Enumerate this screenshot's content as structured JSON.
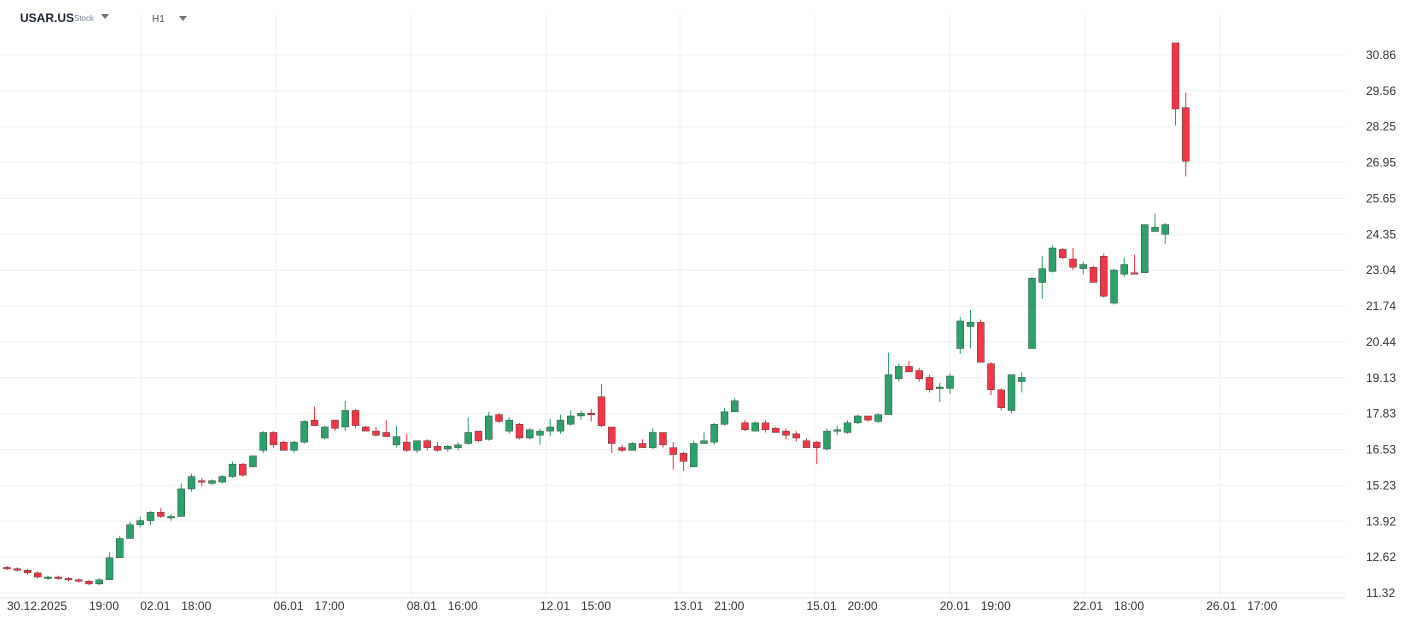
{
  "header": {
    "symbol": "USAR.US",
    "instrument_type": "Stock",
    "timeframe": "H1"
  },
  "colors": {
    "up": "#2ca26b",
    "down": "#f23645",
    "grid": "#eef0f3",
    "axis_text": "#333333"
  },
  "chart_data": {
    "type": "candlestick",
    "ylim": [
      11.32,
      31.5
    ],
    "y_ticks": [
      "30.86",
      "29.56",
      "28.25",
      "26.95",
      "25.65",
      "24.35",
      "23.04",
      "21.74",
      "20.44",
      "19.13",
      "17.83",
      "16.53",
      "15.23",
      "13.92",
      "12.62",
      "11.32"
    ],
    "x_ticks": [
      {
        "label": "30.12.2025",
        "bar": 0
      },
      {
        "label": "19:00",
        "bar": 8
      },
      {
        "label": "02.01",
        "bar": 13
      },
      {
        "label": "18:00",
        "bar": 17
      },
      {
        "label": "06.01",
        "bar": 26
      },
      {
        "label": "17:00",
        "bar": 30
      },
      {
        "label": "08.01",
        "bar": 39
      },
      {
        "label": "16:00",
        "bar": 43
      },
      {
        "label": "12.01",
        "bar": 52
      },
      {
        "label": "15:00",
        "bar": 56
      },
      {
        "label": "13.01",
        "bar": 65
      },
      {
        "label": "21:00",
        "bar": 69
      },
      {
        "label": "15.01",
        "bar": 78
      },
      {
        "label": "20:00",
        "bar": 82
      },
      {
        "label": "20.01",
        "bar": 91
      },
      {
        "label": "19:00",
        "bar": 95
      },
      {
        "label": "22.01",
        "bar": 104
      },
      {
        "label": "18:00",
        "bar": 108
      },
      {
        "label": "26.01",
        "bar": 117
      },
      {
        "label": "17:00",
        "bar": 121
      }
    ],
    "candles": [
      [
        12.25,
        12.3,
        12.15,
        12.2
      ],
      [
        12.2,
        12.25,
        12.1,
        12.15
      ],
      [
        12.15,
        12.2,
        12.0,
        12.05
      ],
      [
        12.05,
        12.1,
        11.85,
        11.9
      ],
      [
        11.85,
        11.95,
        11.8,
        11.9
      ],
      [
        11.9,
        11.95,
        11.8,
        11.85
      ],
      [
        11.85,
        11.9,
        11.75,
        11.8
      ],
      [
        11.8,
        11.85,
        11.7,
        11.75
      ],
      [
        11.75,
        11.8,
        11.6,
        11.65
      ],
      [
        11.65,
        11.85,
        11.6,
        11.8
      ],
      [
        11.8,
        12.8,
        11.8,
        12.6
      ],
      [
        12.6,
        13.4,
        12.6,
        13.3
      ],
      [
        13.3,
        13.9,
        13.3,
        13.8
      ],
      [
        13.8,
        14.1,
        13.7,
        13.95
      ],
      [
        13.95,
        14.3,
        13.8,
        14.25
      ],
      [
        14.25,
        14.4,
        14.05,
        14.1
      ],
      [
        14.05,
        14.2,
        13.95,
        14.1
      ],
      [
        14.1,
        15.3,
        14.1,
        15.1
      ],
      [
        15.1,
        15.65,
        15.0,
        15.55
      ],
      [
        15.4,
        15.5,
        15.2,
        15.35
      ],
      [
        15.3,
        15.45,
        15.25,
        15.4
      ],
      [
        15.35,
        15.6,
        15.3,
        15.55
      ],
      [
        15.55,
        16.1,
        15.5,
        16.0
      ],
      [
        16.0,
        16.05,
        15.55,
        15.6
      ],
      [
        15.9,
        16.3,
        15.9,
        16.3
      ],
      [
        16.5,
        17.2,
        16.4,
        17.15
      ],
      [
        17.15,
        17.2,
        16.6,
        16.7
      ],
      [
        16.8,
        16.85,
        16.5,
        16.5
      ],
      [
        16.5,
        16.85,
        16.4,
        16.8
      ],
      [
        16.8,
        17.6,
        16.75,
        17.55
      ],
      [
        17.6,
        18.1,
        17.4,
        17.4
      ],
      [
        16.95,
        17.4,
        16.9,
        17.35
      ],
      [
        17.6,
        17.6,
        17.2,
        17.3
      ],
      [
        17.35,
        18.3,
        17.2,
        17.95
      ],
      [
        17.95,
        18.0,
        17.3,
        17.4
      ],
      [
        17.35,
        17.4,
        17.25,
        17.2
      ],
      [
        17.2,
        17.35,
        17.0,
        17.05
      ],
      [
        17.15,
        17.6,
        17.05,
        17.0
      ],
      [
        16.7,
        17.4,
        16.6,
        17.0
      ],
      [
        16.8,
        17.1,
        16.45,
        16.5
      ],
      [
        16.5,
        16.85,
        16.4,
        16.85
      ],
      [
        16.85,
        16.9,
        16.5,
        16.6
      ],
      [
        16.65,
        16.8,
        16.45,
        16.5
      ],
      [
        16.55,
        16.7,
        16.45,
        16.65
      ],
      [
        16.6,
        16.8,
        16.5,
        16.7
      ],
      [
        16.75,
        17.7,
        16.7,
        17.15
      ],
      [
        17.2,
        17.2,
        16.8,
        16.85
      ],
      [
        16.9,
        17.9,
        16.85,
        17.75
      ],
      [
        17.8,
        17.85,
        17.5,
        17.55
      ],
      [
        17.2,
        17.7,
        17.1,
        17.6
      ],
      [
        17.45,
        17.5,
        16.9,
        16.95
      ],
      [
        16.95,
        17.3,
        16.9,
        17.25
      ],
      [
        17.05,
        17.3,
        16.7,
        17.2
      ],
      [
        17.2,
        17.65,
        17.0,
        17.35
      ],
      [
        17.2,
        17.8,
        17.1,
        17.6
      ],
      [
        17.45,
        17.95,
        17.4,
        17.75
      ],
      [
        17.75,
        17.95,
        17.6,
        17.85
      ],
      [
        17.85,
        18.0,
        17.55,
        17.8
      ],
      [
        18.45,
        18.9,
        17.35,
        17.4
      ],
      [
        17.35,
        17.35,
        16.4,
        16.75
      ],
      [
        16.6,
        16.7,
        16.45,
        16.5
      ],
      [
        16.5,
        16.8,
        16.5,
        16.75
      ],
      [
        16.75,
        16.9,
        16.6,
        16.6
      ],
      [
        16.6,
        17.3,
        16.55,
        17.15
      ],
      [
        17.15,
        17.15,
        16.6,
        16.7
      ],
      [
        16.6,
        16.8,
        15.8,
        16.35
      ],
      [
        16.4,
        16.45,
        15.75,
        16.1
      ],
      [
        15.9,
        16.85,
        15.9,
        16.75
      ],
      [
        16.75,
        17.15,
        16.75,
        16.85
      ],
      [
        16.8,
        17.5,
        16.7,
        17.45
      ],
      [
        17.45,
        18.05,
        17.4,
        17.9
      ],
      [
        17.9,
        18.4,
        17.9,
        18.3
      ],
      [
        17.5,
        17.6,
        17.2,
        17.25
      ],
      [
        17.2,
        17.55,
        17.2,
        17.5
      ],
      [
        17.5,
        17.6,
        17.15,
        17.25
      ],
      [
        17.3,
        17.35,
        17.15,
        17.15
      ],
      [
        17.2,
        17.3,
        16.9,
        17.05
      ],
      [
        17.1,
        17.2,
        16.8,
        16.95
      ],
      [
        16.85,
        16.95,
        16.7,
        16.6
      ],
      [
        16.8,
        16.85,
        16.0,
        16.6
      ],
      [
        16.55,
        17.3,
        16.5,
        17.2
      ],
      [
        17.2,
        17.4,
        17.05,
        17.25
      ],
      [
        17.15,
        17.6,
        17.1,
        17.5
      ],
      [
        17.5,
        17.8,
        17.45,
        17.75
      ],
      [
        17.75,
        17.75,
        17.55,
        17.6
      ],
      [
        17.55,
        17.85,
        17.5,
        17.8
      ],
      [
        17.8,
        20.05,
        17.8,
        19.25
      ],
      [
        19.1,
        19.65,
        19.0,
        19.55
      ],
      [
        19.55,
        19.75,
        19.35,
        19.35
      ],
      [
        19.4,
        19.5,
        19.0,
        19.1
      ],
      [
        19.15,
        19.25,
        18.6,
        18.7
      ],
      [
        18.75,
        18.95,
        18.25,
        18.8
      ],
      [
        18.75,
        19.3,
        18.55,
        19.2
      ],
      [
        20.2,
        21.35,
        20.0,
        21.2
      ],
      [
        21.0,
        21.6,
        20.2,
        21.15
      ],
      [
        21.15,
        21.25,
        19.8,
        19.7
      ],
      [
        19.65,
        19.7,
        18.5,
        18.7
      ],
      [
        18.7,
        18.75,
        17.95,
        18.05
      ],
      [
        17.95,
        19.25,
        17.85,
        19.25
      ],
      [
        19.0,
        19.35,
        18.6,
        19.15
      ],
      [
        20.2,
        22.8,
        20.2,
        22.75
      ],
      [
        22.6,
        23.55,
        22.0,
        23.1
      ],
      [
        23.0,
        23.95,
        22.95,
        23.85
      ],
      [
        23.8,
        23.85,
        23.45,
        23.5
      ],
      [
        23.45,
        23.85,
        23.05,
        23.15
      ],
      [
        23.1,
        23.35,
        22.9,
        23.25
      ],
      [
        23.15,
        23.2,
        22.6,
        22.6
      ],
      [
        23.55,
        23.65,
        22.05,
        22.1
      ],
      [
        21.85,
        23.1,
        21.8,
        23.05
      ],
      [
        22.9,
        23.5,
        22.8,
        23.25
      ],
      [
        22.95,
        23.6,
        22.9,
        22.9
      ],
      [
        22.95,
        24.7,
        22.95,
        24.7
      ],
      [
        24.45,
        25.1,
        24.5,
        24.6
      ],
      [
        24.35,
        24.75,
        24.0,
        24.7
      ],
      [
        31.3,
        31.3,
        28.3,
        28.9
      ],
      [
        28.95,
        29.5,
        26.45,
        27.0
      ]
    ]
  }
}
